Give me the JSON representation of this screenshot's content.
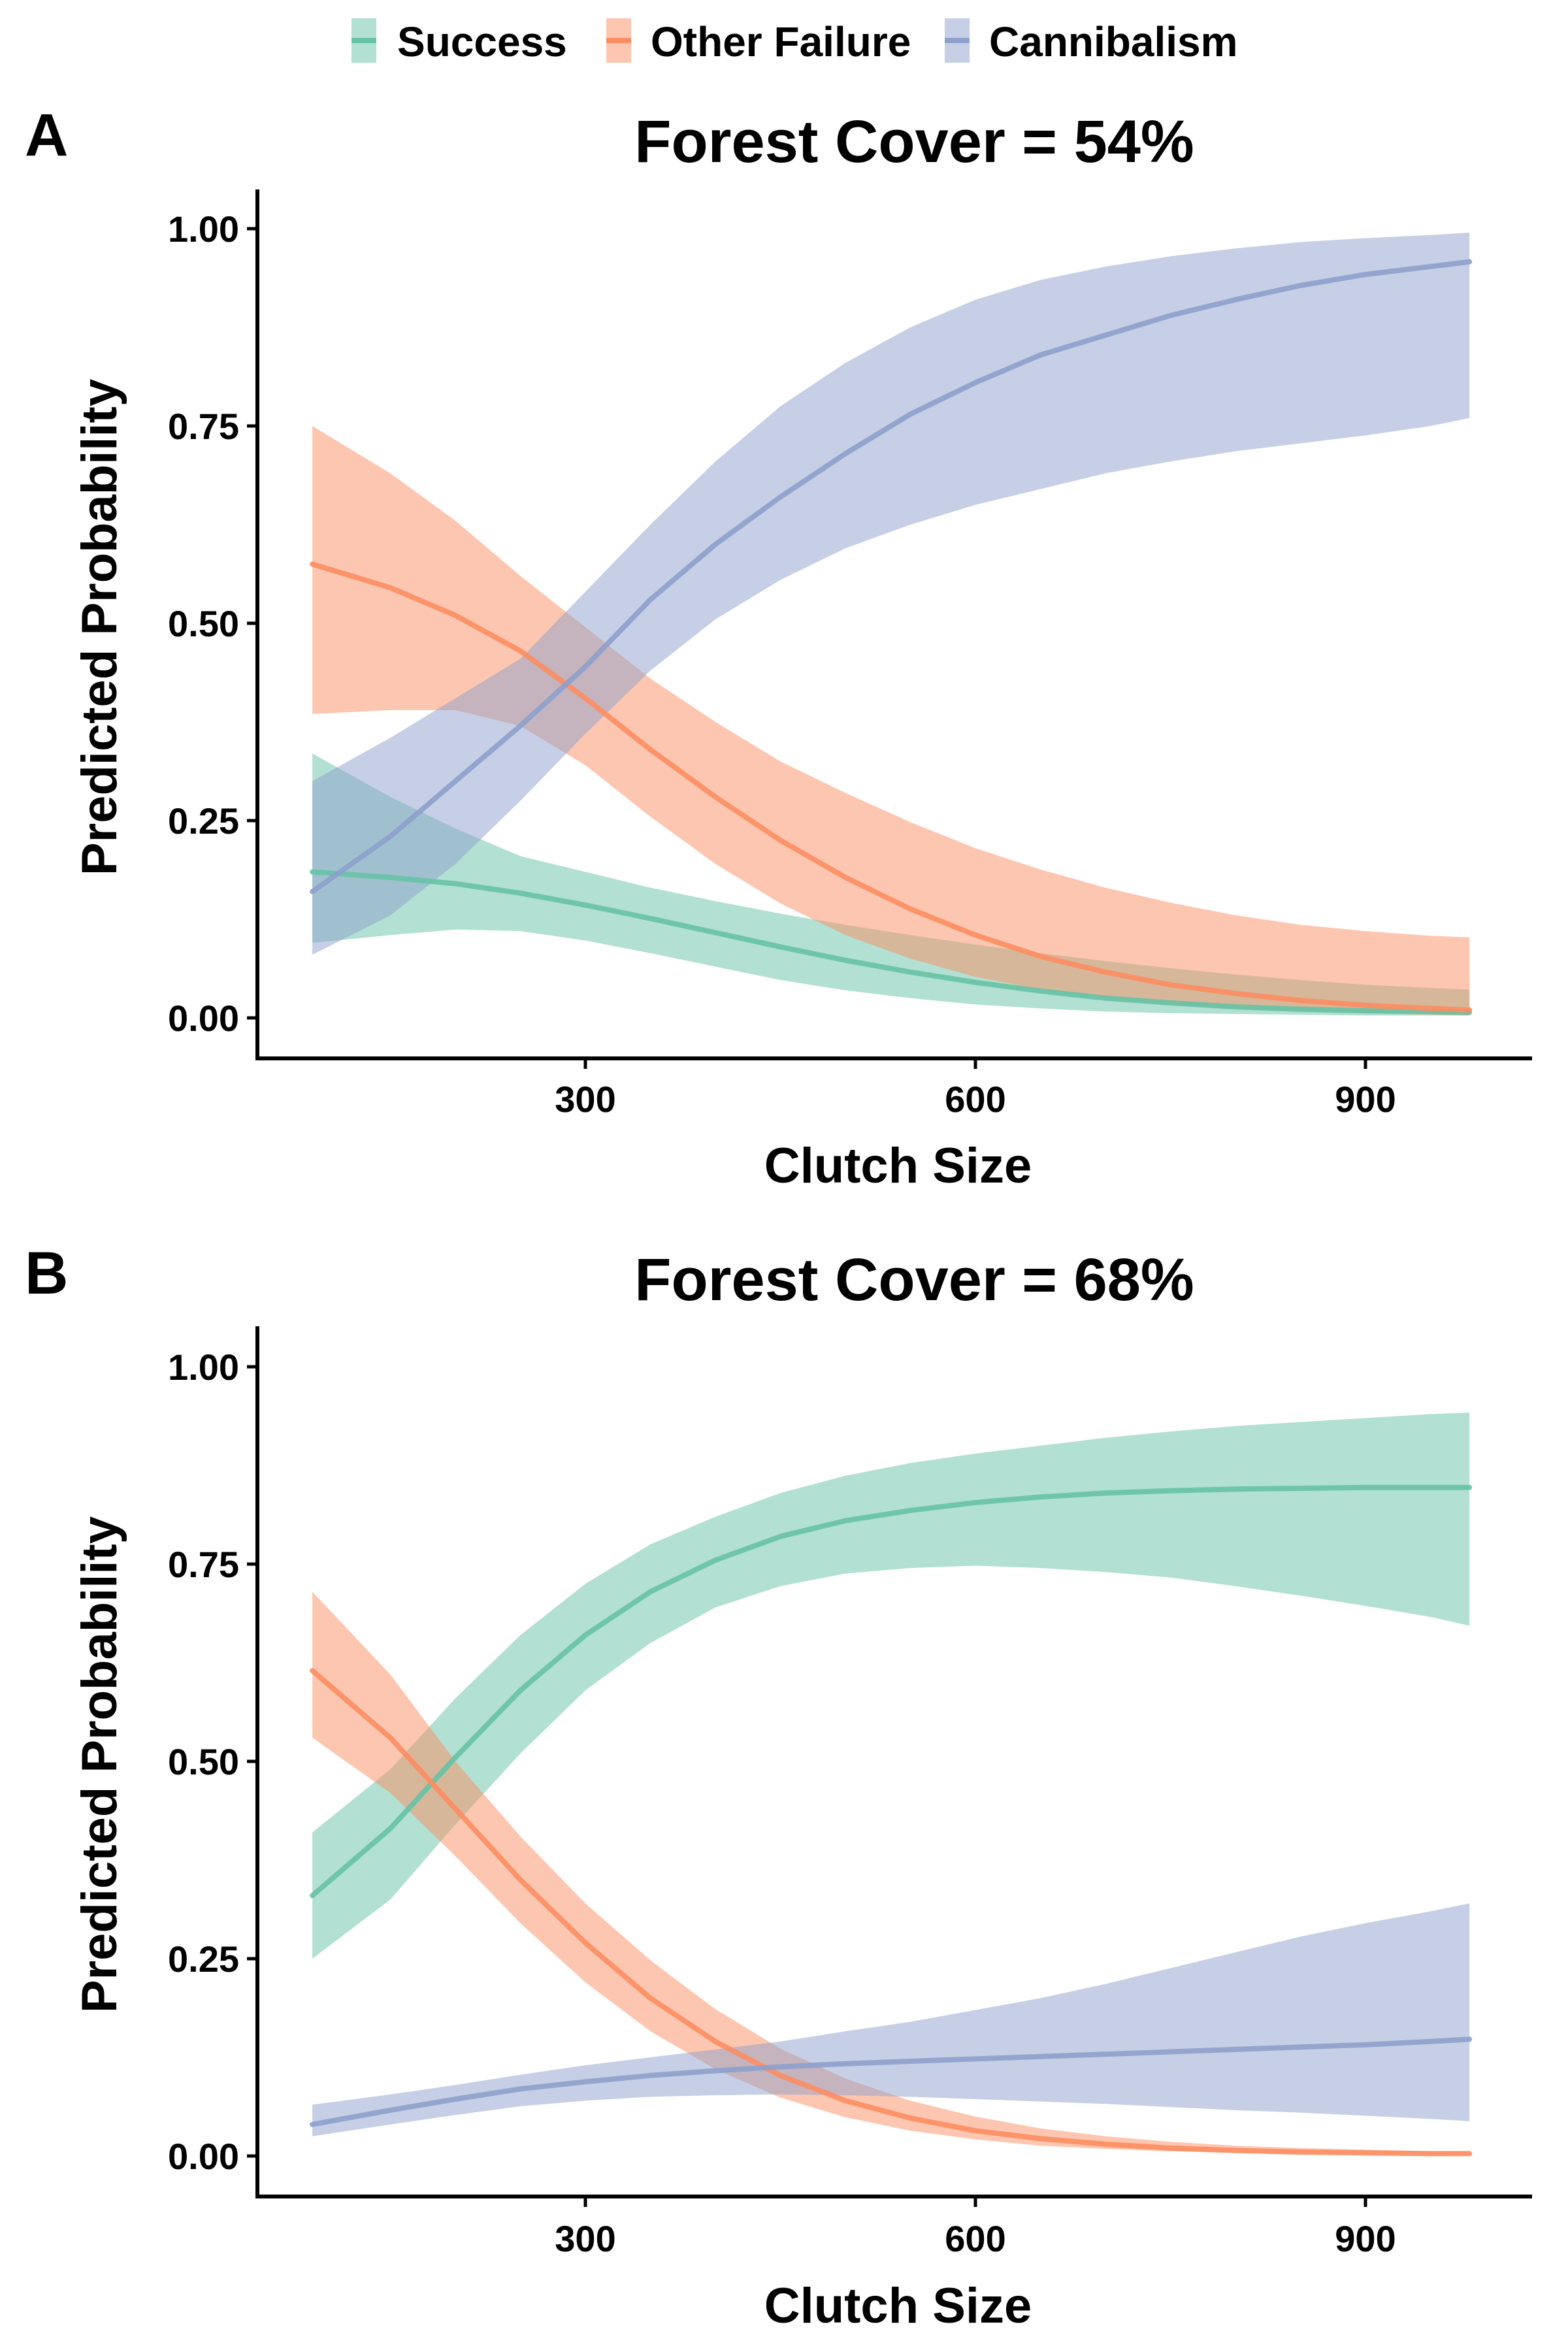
{
  "legend": {
    "items": [
      {
        "label": "Success",
        "color": "#66c2a5"
      },
      {
        "label": "Other Failure",
        "color": "#fc8d62"
      },
      {
        "label": "Cannibalism",
        "color": "#8da0cb"
      }
    ]
  },
  "chart_data": [
    {
      "type": "line",
      "panel_letter": "A",
      "title": "Forest Cover = 54%",
      "xlabel": "Clutch Size",
      "ylabel": "Predicted Probability",
      "xlim": [
        50,
        1000
      ],
      "ylim": [
        -0.05,
        1.05
      ],
      "xticks": [
        300,
        600,
        900
      ],
      "yticks": [
        0.0,
        0.25,
        0.5,
        0.75,
        1.0
      ],
      "ytick_labels": [
        "0.00",
        "0.25",
        "0.50",
        "0.75",
        "1.00"
      ],
      "grid": false,
      "legend_position": "top",
      "x": [
        90,
        150,
        200,
        250,
        300,
        350,
        400,
        450,
        500,
        550,
        600,
        650,
        700,
        750,
        800,
        850,
        900,
        950,
        980
      ],
      "series": [
        {
          "name": "Success",
          "color": "#66c2a5",
          "y": [
            0.185,
            0.178,
            0.17,
            0.158,
            0.143,
            0.126,
            0.108,
            0.09,
            0.073,
            0.058,
            0.045,
            0.034,
            0.025,
            0.019,
            0.014,
            0.011,
            0.009,
            0.008,
            0.007
          ],
          "lower": [
            0.095,
            0.105,
            0.112,
            0.11,
            0.098,
            0.082,
            0.065,
            0.048,
            0.035,
            0.025,
            0.017,
            0.012,
            0.008,
            0.006,
            0.005,
            0.004,
            0.003,
            0.003,
            0.003
          ],
          "upper": [
            0.335,
            0.28,
            0.24,
            0.205,
            0.185,
            0.165,
            0.148,
            0.132,
            0.118,
            0.105,
            0.093,
            0.082,
            0.072,
            0.063,
            0.055,
            0.048,
            0.042,
            0.038,
            0.036
          ]
        },
        {
          "name": "Other Failure",
          "color": "#fc8d62",
          "y": [
            0.575,
            0.545,
            0.51,
            0.465,
            0.405,
            0.34,
            0.28,
            0.225,
            0.178,
            0.138,
            0.105,
            0.078,
            0.058,
            0.042,
            0.031,
            0.022,
            0.016,
            0.012,
            0.01
          ],
          "lower": [
            0.385,
            0.39,
            0.39,
            0.37,
            0.32,
            0.255,
            0.195,
            0.145,
            0.105,
            0.075,
            0.052,
            0.036,
            0.025,
            0.017,
            0.012,
            0.008,
            0.006,
            0.004,
            0.003
          ],
          "upper": [
            0.75,
            0.69,
            0.63,
            0.56,
            0.495,
            0.43,
            0.375,
            0.325,
            0.285,
            0.248,
            0.215,
            0.188,
            0.165,
            0.146,
            0.13,
            0.118,
            0.11,
            0.104,
            0.102
          ]
        },
        {
          "name": "Cannibalism",
          "color": "#8da0cb",
          "y": [
            0.16,
            0.23,
            0.3,
            0.37,
            0.445,
            0.53,
            0.6,
            0.66,
            0.715,
            0.765,
            0.805,
            0.84,
            0.865,
            0.89,
            0.91,
            0.928,
            0.942,
            0.952,
            0.958
          ],
          "lower": [
            0.08,
            0.13,
            0.195,
            0.275,
            0.36,
            0.44,
            0.505,
            0.555,
            0.595,
            0.625,
            0.65,
            0.67,
            0.69,
            0.705,
            0.718,
            0.728,
            0.738,
            0.75,
            0.76
          ],
          "upper": [
            0.3,
            0.355,
            0.405,
            0.455,
            0.54,
            0.625,
            0.705,
            0.775,
            0.83,
            0.875,
            0.91,
            0.935,
            0.952,
            0.965,
            0.975,
            0.983,
            0.988,
            0.992,
            0.995
          ]
        }
      ]
    },
    {
      "type": "line",
      "panel_letter": "B",
      "title": "Forest Cover = 68%",
      "xlabel": "Clutch Size",
      "ylabel": "Predicted Probability",
      "xlim": [
        50,
        1000
      ],
      "ylim": [
        -0.05,
        1.05
      ],
      "xticks": [
        300,
        600,
        900
      ],
      "yticks": [
        0.0,
        0.25,
        0.5,
        0.75,
        1.0
      ],
      "ytick_labels": [
        "0.00",
        "0.25",
        "0.50",
        "0.75",
        "1.00"
      ],
      "grid": false,
      "x": [
        90,
        150,
        200,
        250,
        300,
        350,
        400,
        450,
        500,
        550,
        600,
        650,
        700,
        750,
        800,
        850,
        900,
        950,
        980
      ],
      "series": [
        {
          "name": "Success",
          "color": "#66c2a5",
          "y": [
            0.33,
            0.415,
            0.505,
            0.59,
            0.66,
            0.715,
            0.755,
            0.785,
            0.805,
            0.818,
            0.828,
            0.835,
            0.84,
            0.843,
            0.845,
            0.846,
            0.847,
            0.847,
            0.847
          ],
          "lower": [
            0.25,
            0.325,
            0.42,
            0.51,
            0.59,
            0.65,
            0.695,
            0.722,
            0.738,
            0.745,
            0.748,
            0.745,
            0.74,
            0.733,
            0.722,
            0.71,
            0.697,
            0.683,
            0.672
          ],
          "upper": [
            0.41,
            0.49,
            0.58,
            0.66,
            0.725,
            0.775,
            0.81,
            0.84,
            0.862,
            0.878,
            0.89,
            0.9,
            0.91,
            0.918,
            0.925,
            0.93,
            0.935,
            0.94,
            0.942
          ]
        },
        {
          "name": "Other Failure",
          "color": "#fc8d62",
          "y": [
            0.615,
            0.53,
            0.44,
            0.35,
            0.27,
            0.2,
            0.145,
            0.102,
            0.07,
            0.048,
            0.032,
            0.022,
            0.015,
            0.01,
            0.007,
            0.005,
            0.004,
            0.003,
            0.003
          ],
          "lower": [
            0.53,
            0.46,
            0.38,
            0.295,
            0.22,
            0.158,
            0.11,
            0.074,
            0.049,
            0.032,
            0.021,
            0.013,
            0.009,
            0.006,
            0.004,
            0.003,
            0.002,
            0.002,
            0.001
          ],
          "upper": [
            0.715,
            0.61,
            0.5,
            0.405,
            0.32,
            0.248,
            0.186,
            0.136,
            0.098,
            0.07,
            0.05,
            0.035,
            0.025,
            0.018,
            0.013,
            0.01,
            0.008,
            0.006,
            0.006
          ]
        },
        {
          "name": "Cannibalism",
          "color": "#8da0cb",
          "y": [
            0.04,
            0.058,
            0.072,
            0.085,
            0.094,
            0.102,
            0.108,
            0.113,
            0.117,
            0.12,
            0.123,
            0.126,
            0.129,
            0.132,
            0.135,
            0.138,
            0.141,
            0.145,
            0.148
          ],
          "lower": [
            0.025,
            0.04,
            0.052,
            0.063,
            0.07,
            0.075,
            0.077,
            0.078,
            0.077,
            0.075,
            0.072,
            0.069,
            0.066,
            0.062,
            0.058,
            0.055,
            0.051,
            0.047,
            0.044
          ],
          "upper": [
            0.065,
            0.078,
            0.09,
            0.103,
            0.115,
            0.125,
            0.135,
            0.145,
            0.158,
            0.17,
            0.185,
            0.2,
            0.218,
            0.238,
            0.258,
            0.278,
            0.295,
            0.31,
            0.32
          ]
        }
      ]
    }
  ]
}
